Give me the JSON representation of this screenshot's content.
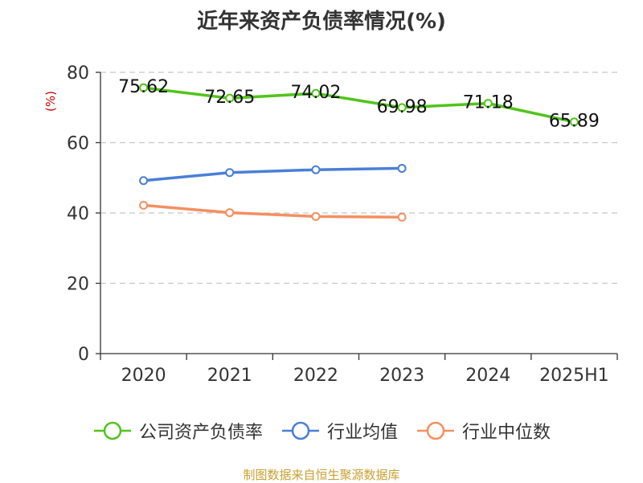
{
  "chart_data": {
    "type": "line",
    "title": "近年来资产负债率情况(%)",
    "ylabel": "(%)",
    "xlabel": "",
    "categories": [
      "2020",
      "2021",
      "2022",
      "2023",
      "2024",
      "2025H1"
    ],
    "ylim": [
      0,
      80
    ],
    "yticks": [
      0,
      20,
      40,
      60,
      80
    ],
    "grid": true,
    "legend_position": "bottom",
    "series": [
      {
        "name": "公司资产负债率",
        "color": "#52c41a",
        "values": [
          75.62,
          72.65,
          74.02,
          69.98,
          71.18,
          65.89
        ],
        "labels": [
          "75.62",
          "72.65",
          "74.02",
          "69.98",
          "71.18",
          "65.89"
        ]
      },
      {
        "name": "行业均值",
        "color": "#4a7fd6",
        "values": [
          49.2,
          51.5,
          52.3,
          52.7,
          null,
          null
        ]
      },
      {
        "name": "行业中位数",
        "color": "#f39060",
        "values": [
          42.2,
          40.1,
          39.0,
          38.8,
          null,
          null
        ]
      }
    ]
  },
  "source": {
    "text": "制图数据来自恒生聚源数据库",
    "color": "#c8a032"
  },
  "ylabel_color": "#cc0000"
}
